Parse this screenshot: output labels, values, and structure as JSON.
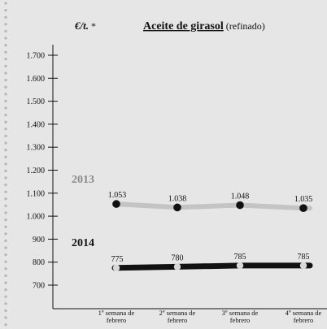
{
  "header": {
    "unit": "€/t.",
    "unit_mark": " *",
    "title": "Aceite de girasol",
    "subtitle": " (refinado)"
  },
  "colors": {
    "background": "#e6e6e6",
    "line_2013": "#c4c4c4",
    "line_2014": "#111111",
    "marker_2013": "#111111",
    "marker_2014": "#d8d8d8",
    "label_2013": "#8a8a8a",
    "label_2014": "#111111",
    "dots": "#b4b4b4"
  },
  "chart_data": {
    "type": "line",
    "title": "Aceite de girasol (refinado)",
    "ylabel": "€/t. *",
    "xlabel": "",
    "categories": [
      [
        "1º semana de",
        "febrero"
      ],
      [
        "2º semana de",
        "febrero"
      ],
      [
        "3º semana de",
        "febrero"
      ],
      [
        "4º semana de",
        "febrero"
      ]
    ],
    "yticks": [
      "700",
      "800",
      "900",
      "1.000",
      "1.100",
      "1.200",
      "1.300",
      "1.400",
      "1.500",
      "1.600",
      "1.700"
    ],
    "ytick_values": [
      700,
      800,
      900,
      1000,
      1100,
      1200,
      1300,
      1400,
      1500,
      1600,
      1700
    ],
    "ylim": [
      620,
      1730
    ],
    "grid": false,
    "legend": "inline-left",
    "series": [
      {
        "name": "2013",
        "values": [
          1053,
          1038,
          1048,
          1035
        ],
        "labels": [
          "1.053",
          "1.038",
          "1.048",
          "1.035"
        ]
      },
      {
        "name": "2014",
        "values": [
          775,
          780,
          785,
          785
        ],
        "labels": [
          "775",
          "780",
          "785",
          "785"
        ]
      }
    ]
  }
}
